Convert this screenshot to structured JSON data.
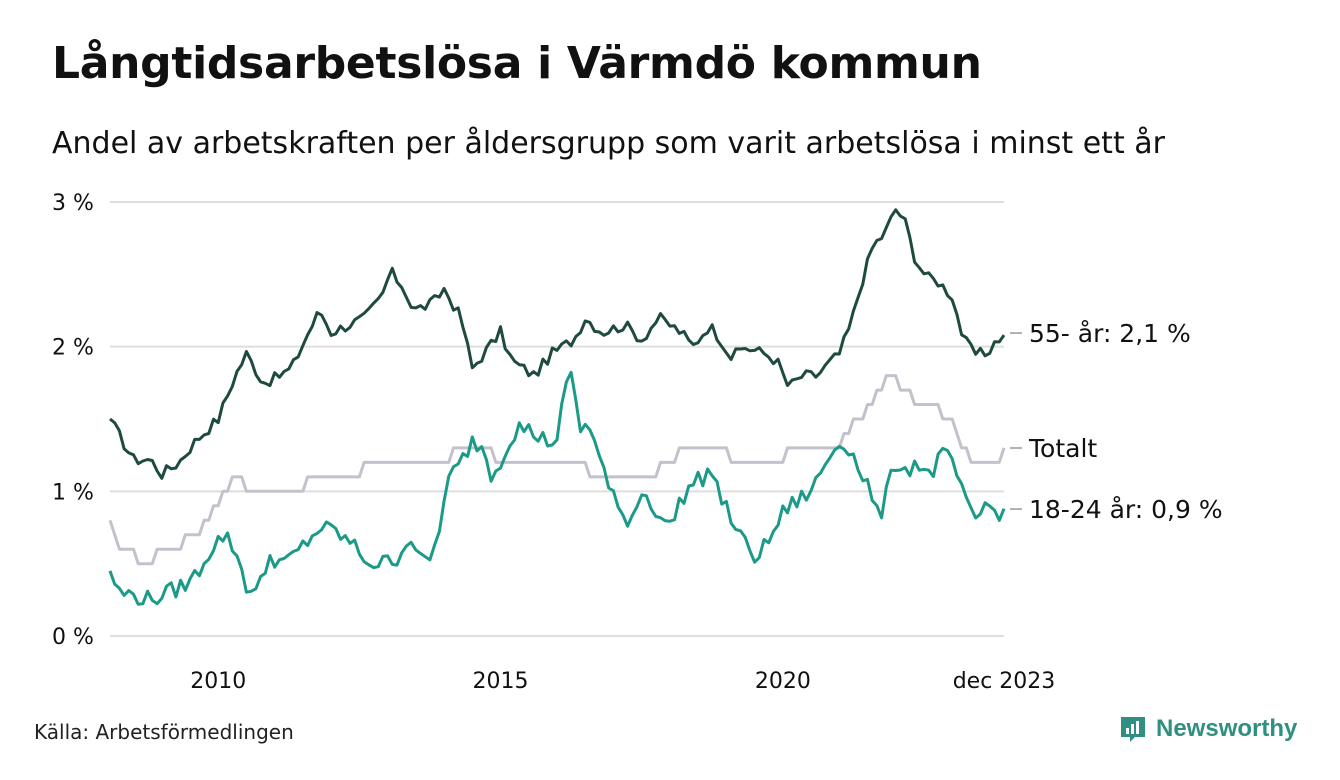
{
  "title": "Långtidsarbetslösa i Värmdö kommun",
  "subtitle": "Andel av arbetskraften per åldersgrupp som varit arbetslösa i minst ett år",
  "source": "Källa: Arbetsförmedlingen",
  "brand": {
    "name": "Newsworthy",
    "icon": "newsworthy-logo-icon"
  },
  "colors": {
    "older": "#1f4a40",
    "young": "#1c9a88",
    "total": "#c4c0cc",
    "grid": "#dedede",
    "brand": "#2f8f80"
  },
  "chart_data": {
    "type": "line",
    "x_start": 2008.083,
    "x_step": 0.083333,
    "ylim": [
      0,
      3
    ],
    "y_ticks": [
      0,
      1,
      2,
      3
    ],
    "y_tick_labels": [
      "0 %",
      "1 %",
      "2 %",
      "3 %"
    ],
    "x_ticks": [
      2010,
      2015,
      2020,
      2023.917
    ],
    "x_tick_labels": [
      "2010",
      "2015",
      "2020",
      "dec 2023"
    ],
    "grid": true,
    "series": [
      {
        "name": "55- år",
        "label": "55- år: 2,1 %",
        "color_key": "older",
        "anchors": [
          [
            2008.083,
            1.5
          ],
          [
            2008.3,
            1.35
          ],
          [
            2008.5,
            1.22
          ],
          [
            2008.8,
            1.22
          ],
          [
            2009.0,
            1.12
          ],
          [
            2009.3,
            1.2
          ],
          [
            2009.6,
            1.35
          ],
          [
            2010.0,
            1.5
          ],
          [
            2010.3,
            1.8
          ],
          [
            2010.5,
            1.95
          ],
          [
            2010.8,
            1.75
          ],
          [
            2011.0,
            1.78
          ],
          [
            2011.3,
            1.85
          ],
          [
            2011.6,
            2.1
          ],
          [
            2011.8,
            2.25
          ],
          [
            2012.0,
            2.1
          ],
          [
            2012.3,
            2.15
          ],
          [
            2012.6,
            2.2
          ],
          [
            2012.9,
            2.35
          ],
          [
            2013.05,
            2.52
          ],
          [
            2013.3,
            2.4
          ],
          [
            2013.45,
            2.25
          ],
          [
            2013.8,
            2.3
          ],
          [
            2014.0,
            2.4
          ],
          [
            2014.3,
            2.2
          ],
          [
            2014.5,
            1.85
          ],
          [
            2014.8,
            2.0
          ],
          [
            2015.0,
            2.1
          ],
          [
            2015.2,
            1.9
          ],
          [
            2015.6,
            1.8
          ],
          [
            2015.9,
            1.95
          ],
          [
            2016.3,
            2.05
          ],
          [
            2016.5,
            2.2
          ],
          [
            2016.8,
            2.1
          ],
          [
            2017.2,
            2.15
          ],
          [
            2017.5,
            2.05
          ],
          [
            2017.8,
            2.2
          ],
          [
            2018.2,
            2.1
          ],
          [
            2018.4,
            2.0
          ],
          [
            2018.7,
            2.15
          ],
          [
            2018.9,
            2.05
          ],
          [
            2019.1,
            1.92
          ],
          [
            2019.3,
            2.0
          ],
          [
            2019.7,
            1.95
          ],
          [
            2019.9,
            1.9
          ],
          [
            2020.1,
            1.72
          ],
          [
            2020.35,
            1.8
          ],
          [
            2020.6,
            1.8
          ],
          [
            2020.8,
            1.88
          ],
          [
            2021.0,
            1.95
          ],
          [
            2021.2,
            2.15
          ],
          [
            2021.4,
            2.45
          ],
          [
            2021.6,
            2.7
          ],
          [
            2021.8,
            2.78
          ],
          [
            2022.0,
            2.95
          ],
          [
            2022.15,
            2.88
          ],
          [
            2022.35,
            2.6
          ],
          [
            2022.55,
            2.48
          ],
          [
            2022.75,
            2.45
          ],
          [
            2023.0,
            2.35
          ],
          [
            2023.2,
            2.05
          ],
          [
            2023.4,
            1.95
          ],
          [
            2023.6,
            1.95
          ],
          [
            2023.8,
            2.05
          ],
          [
            2023.917,
            2.08
          ]
        ]
      },
      {
        "name": "Totalt",
        "label": "Totalt",
        "color_key": "total",
        "anchors": [
          [
            2008.083,
            0.8
          ],
          [
            2008.2,
            0.6
          ],
          [
            2008.5,
            0.55
          ],
          [
            2008.8,
            0.5
          ],
          [
            2009.0,
            0.6
          ],
          [
            2009.4,
            0.65
          ],
          [
            2009.7,
            0.75
          ],
          [
            2010.0,
            0.95
          ],
          [
            2010.3,
            1.1
          ],
          [
            2010.6,
            1.0
          ],
          [
            2011.0,
            1.0
          ],
          [
            2011.5,
            1.05
          ],
          [
            2012.0,
            1.1
          ],
          [
            2012.5,
            1.15
          ],
          [
            2012.8,
            1.2
          ],
          [
            2013.0,
            1.2
          ],
          [
            2013.5,
            1.2
          ],
          [
            2014.0,
            1.22
          ],
          [
            2014.3,
            1.3
          ],
          [
            2014.8,
            1.3
          ],
          [
            2015.0,
            1.2
          ],
          [
            2015.5,
            1.2
          ],
          [
            2016.0,
            1.25
          ],
          [
            2016.3,
            1.2
          ],
          [
            2016.8,
            1.1
          ],
          [
            2017.5,
            1.1
          ],
          [
            2018.0,
            1.2
          ],
          [
            2018.3,
            1.35
          ],
          [
            2018.6,
            1.3
          ],
          [
            2019.0,
            1.25
          ],
          [
            2019.5,
            1.2
          ],
          [
            2020.0,
            1.25
          ],
          [
            2020.5,
            1.3
          ],
          [
            2021.0,
            1.35
          ],
          [
            2021.3,
            1.5
          ],
          [
            2021.6,
            1.62
          ],
          [
            2021.9,
            1.8
          ],
          [
            2022.1,
            1.7
          ],
          [
            2022.4,
            1.62
          ],
          [
            2022.7,
            1.6
          ],
          [
            2023.0,
            1.45
          ],
          [
            2023.3,
            1.25
          ],
          [
            2023.6,
            1.2
          ],
          [
            2023.8,
            1.22
          ],
          [
            2023.917,
            1.27
          ]
        ]
      },
      {
        "name": "18-24 år",
        "label": "18-24 år: 0,9 %",
        "color_key": "young",
        "anchors": [
          [
            2008.083,
            0.45
          ],
          [
            2008.25,
            0.3
          ],
          [
            2008.5,
            0.28
          ],
          [
            2008.8,
            0.25
          ],
          [
            2009.1,
            0.3
          ],
          [
            2009.4,
            0.35
          ],
          [
            2009.6,
            0.42
          ],
          [
            2009.9,
            0.62
          ],
          [
            2010.1,
            0.7
          ],
          [
            2010.3,
            0.6
          ],
          [
            2010.5,
            0.35
          ],
          [
            2010.7,
            0.3
          ],
          [
            2010.9,
            0.55
          ],
          [
            2011.2,
            0.5
          ],
          [
            2011.5,
            0.62
          ],
          [
            2011.8,
            0.75
          ],
          [
            2012.1,
            0.72
          ],
          [
            2012.4,
            0.62
          ],
          [
            2012.7,
            0.5
          ],
          [
            2012.9,
            0.5
          ],
          [
            2013.2,
            0.55
          ],
          [
            2013.4,
            0.7
          ],
          [
            2013.6,
            0.5
          ],
          [
            2013.8,
            0.55
          ],
          [
            2014.1,
            1.1
          ],
          [
            2014.3,
            1.2
          ],
          [
            2014.5,
            1.35
          ],
          [
            2014.7,
            1.3
          ],
          [
            2014.85,
            1.1
          ],
          [
            2015.1,
            1.3
          ],
          [
            2015.3,
            1.45
          ],
          [
            2015.5,
            1.42
          ],
          [
            2015.8,
            1.35
          ],
          [
            2016.0,
            1.35
          ],
          [
            2016.1,
            1.6
          ],
          [
            2016.25,
            1.85
          ],
          [
            2016.4,
            1.4
          ],
          [
            2016.55,
            1.5
          ],
          [
            2016.7,
            1.3
          ],
          [
            2016.9,
            1.05
          ],
          [
            2017.1,
            0.85
          ],
          [
            2017.3,
            0.8
          ],
          [
            2017.5,
            1.0
          ],
          [
            2017.8,
            0.85
          ],
          [
            2018.0,
            0.75
          ],
          [
            2018.2,
            0.95
          ],
          [
            2018.4,
            1.05
          ],
          [
            2018.6,
            1.1
          ],
          [
            2018.75,
            1.15
          ],
          [
            2018.9,
            0.95
          ],
          [
            2019.1,
            0.8
          ],
          [
            2019.3,
            0.65
          ],
          [
            2019.5,
            0.55
          ],
          [
            2019.7,
            0.62
          ],
          [
            2020.0,
            0.85
          ],
          [
            2020.2,
            0.92
          ],
          [
            2020.5,
            1.0
          ],
          [
            2020.7,
            1.15
          ],
          [
            2020.9,
            1.3
          ],
          [
            2021.1,
            1.35
          ],
          [
            2021.3,
            1.2
          ],
          [
            2021.5,
            1.05
          ],
          [
            2021.7,
            0.8
          ],
          [
            2021.85,
            1.0
          ],
          [
            2022.0,
            1.2
          ],
          [
            2022.2,
            1.15
          ],
          [
            2022.4,
            1.2
          ],
          [
            2022.6,
            1.1
          ],
          [
            2022.8,
            1.25
          ],
          [
            2023.0,
            1.22
          ],
          [
            2023.2,
            0.95
          ],
          [
            2023.4,
            0.78
          ],
          [
            2023.6,
            0.92
          ],
          [
            2023.8,
            0.85
          ],
          [
            2023.917,
            0.88
          ]
        ]
      }
    ]
  }
}
